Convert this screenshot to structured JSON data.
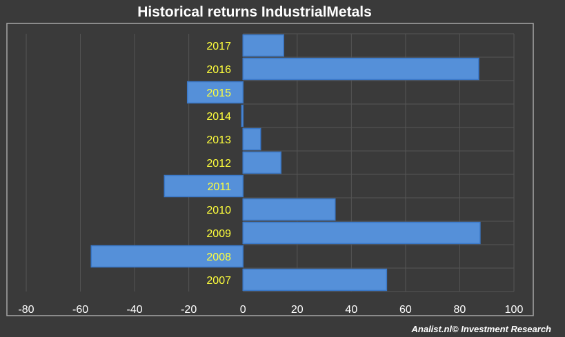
{
  "chart_data": {
    "type": "bar",
    "orientation": "horizontal",
    "title": "Historical returns IndustrialMetals",
    "categories": [
      "2007",
      "2008",
      "2009",
      "2010",
      "2011",
      "2012",
      "2013",
      "2014",
      "2015",
      "2016",
      "2017"
    ],
    "values": [
      53,
      -56,
      87.5,
      34,
      -29,
      14,
      6.5,
      -0.5,
      -20.5,
      87,
      15
    ],
    "xlim": [
      -80,
      100
    ],
    "xticks": [
      "-80",
      "-60",
      "-40",
      "-20",
      "0",
      "20",
      "40",
      "60",
      "80",
      "100"
    ],
    "grid": true,
    "xlabel": "",
    "ylabel": ""
  },
  "credit": "Analist.nl© Investment Research",
  "colors": {
    "background": "#3a3a3a",
    "plot_border": "#a6a6a6",
    "grid": "#555555",
    "bar_fill": "#5590d9",
    "bar_stroke": "#3a78c8",
    "category_label": "#ffff3c",
    "text": "#ffffff"
  }
}
